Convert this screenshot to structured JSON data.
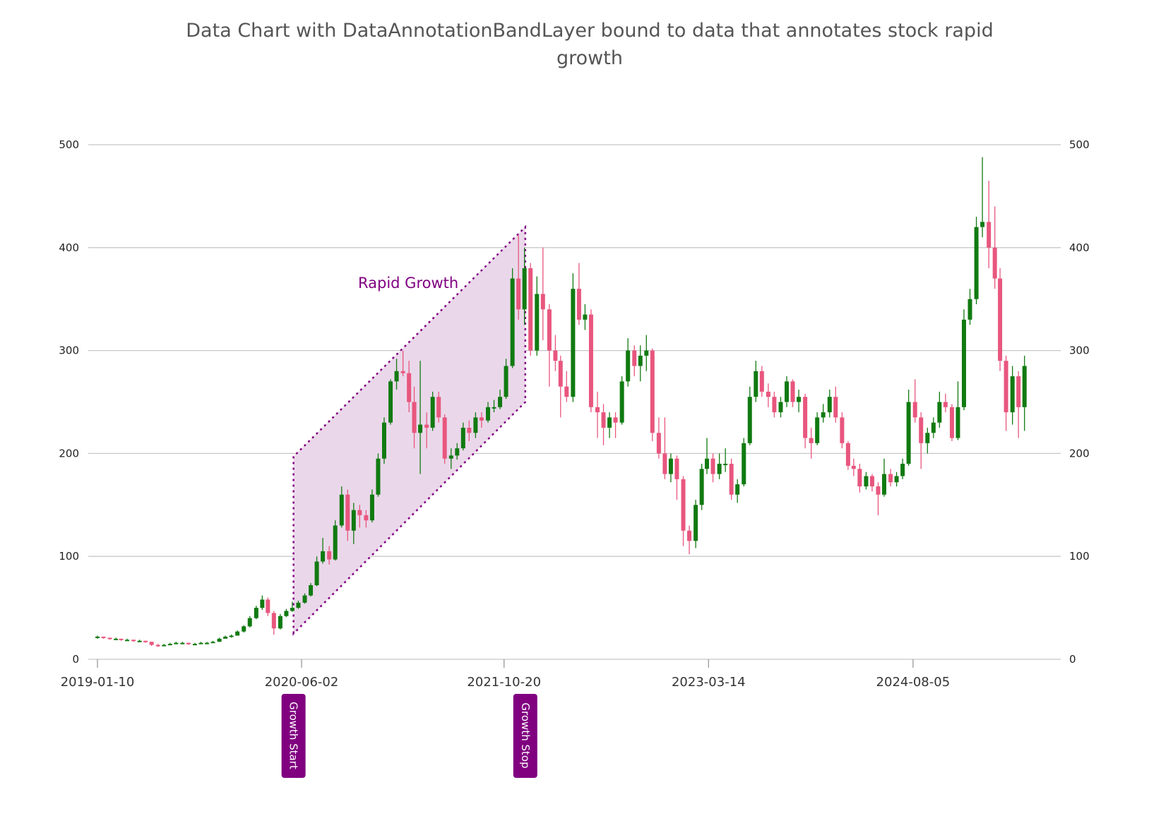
{
  "chart_data": {
    "type": "candlestick",
    "title": "Data Chart with DataAnnotationBandLayer bound to data that annotates stock rapid growth",
    "ylim": [
      0,
      500
    ],
    "yticks": [
      0,
      100,
      200,
      300,
      400,
      500
    ],
    "xticks": [
      "2019-01-10",
      "2020-06-02",
      "2021-10-20",
      "2023-03-14",
      "2024-08-05"
    ],
    "grid": "horizontal",
    "y_axis_both_sides": true,
    "colors": {
      "up": "#117a11",
      "down": "#e8567e",
      "band_fill": "#ead8ea",
      "band_stroke": "#800080",
      "annotation": "#800080",
      "grid": "#c8c8c8",
      "title": "#555555"
    },
    "candles_columns": [
      "date",
      "open",
      "high",
      "low",
      "close"
    ],
    "candles": [
      [
        "2019-01-10",
        21,
        23,
        20,
        22
      ],
      [
        "2019-01-25",
        22,
        22,
        20,
        21
      ],
      [
        "2019-02-10",
        21,
        21,
        19,
        20
      ],
      [
        "2019-02-25",
        20,
        21,
        19,
        20
      ],
      [
        "2019-03-10",
        20,
        20,
        18,
        19
      ],
      [
        "2019-03-25",
        19,
        20,
        18,
        19
      ],
      [
        "2019-04-10",
        19,
        19,
        17,
        18
      ],
      [
        "2019-04-25",
        18,
        19,
        17,
        18
      ],
      [
        "2019-05-10",
        18,
        18,
        16,
        17
      ],
      [
        "2019-05-25",
        17,
        17,
        13,
        14
      ],
      [
        "2019-06-10",
        14,
        15,
        12,
        13
      ],
      [
        "2019-06-25",
        13,
        15,
        13,
        14
      ],
      [
        "2019-07-10",
        14,
        16,
        14,
        15
      ],
      [
        "2019-07-25",
        15,
        17,
        15,
        16
      ],
      [
        "2019-08-10",
        16,
        17,
        15,
        16
      ],
      [
        "2019-08-25",
        16,
        16,
        14,
        15
      ],
      [
        "2019-09-10",
        15,
        16,
        14,
        15
      ],
      [
        "2019-09-25",
        15,
        17,
        15,
        16
      ],
      [
        "2019-10-10",
        16,
        17,
        15,
        16
      ],
      [
        "2019-10-25",
        16,
        18,
        16,
        17
      ],
      [
        "2019-11-10",
        17,
        21,
        17,
        20
      ],
      [
        "2019-11-25",
        20,
        23,
        20,
        22
      ],
      [
        "2019-12-10",
        22,
        24,
        21,
        23
      ],
      [
        "2019-12-25",
        23,
        28,
        23,
        27
      ],
      [
        "2020-01-10",
        27,
        33,
        26,
        32
      ],
      [
        "2020-01-25",
        32,
        42,
        31,
        40
      ],
      [
        "2020-02-10",
        40,
        52,
        39,
        50
      ],
      [
        "2020-02-25",
        50,
        62,
        48,
        58
      ],
      [
        "2020-03-10",
        58,
        60,
        42,
        45
      ],
      [
        "2020-03-25",
        45,
        47,
        24,
        30
      ],
      [
        "2020-04-10",
        30,
        44,
        29,
        42
      ],
      [
        "2020-04-25",
        42,
        49,
        41,
        47
      ],
      [
        "2020-05-10",
        47,
        56,
        46,
        50
      ],
      [
        "2020-05-25",
        50,
        57,
        49,
        55
      ],
      [
        "2020-06-10",
        55,
        64,
        54,
        62
      ],
      [
        "2020-06-25",
        62,
        74,
        61,
        72
      ],
      [
        "2020-07-10",
        72,
        100,
        71,
        95
      ],
      [
        "2020-07-25",
        95,
        118,
        93,
        105
      ],
      [
        "2020-08-10",
        105,
        110,
        92,
        97
      ],
      [
        "2020-08-25",
        97,
        135,
        96,
        130
      ],
      [
        "2020-09-10",
        130,
        168,
        128,
        160
      ],
      [
        "2020-09-25",
        160,
        165,
        115,
        125
      ],
      [
        "2020-10-10",
        125,
        152,
        112,
        145
      ],
      [
        "2020-10-25",
        145,
        150,
        128,
        140
      ],
      [
        "2020-11-10",
        140,
        145,
        128,
        135
      ],
      [
        "2020-11-25",
        135,
        165,
        133,
        160
      ],
      [
        "2020-12-10",
        160,
        200,
        158,
        195
      ],
      [
        "2020-12-25",
        195,
        235,
        190,
        230
      ],
      [
        "2021-01-10",
        230,
        272,
        228,
        270
      ],
      [
        "2021-01-25",
        270,
        292,
        262,
        280
      ],
      [
        "2021-02-10",
        280,
        300,
        275,
        278
      ],
      [
        "2021-02-25",
        278,
        290,
        240,
        250
      ],
      [
        "2021-03-10",
        250,
        265,
        205,
        220
      ],
      [
        "2021-03-25",
        220,
        290,
        180,
        228
      ],
      [
        "2021-04-10",
        228,
        240,
        205,
        225
      ],
      [
        "2021-04-25",
        225,
        260,
        222,
        255
      ],
      [
        "2021-05-10",
        255,
        260,
        230,
        235
      ],
      [
        "2021-05-25",
        235,
        238,
        190,
        195
      ],
      [
        "2021-06-10",
        195,
        205,
        185,
        198
      ],
      [
        "2021-06-25",
        198,
        210,
        194,
        205
      ],
      [
        "2021-07-10",
        205,
        230,
        203,
        225
      ],
      [
        "2021-07-25",
        225,
        232,
        212,
        220
      ],
      [
        "2021-08-10",
        220,
        240,
        215,
        235
      ],
      [
        "2021-08-25",
        235,
        240,
        225,
        232
      ],
      [
        "2021-09-10",
        232,
        250,
        230,
        245
      ],
      [
        "2021-09-25",
        245,
        252,
        240,
        245
      ],
      [
        "2021-10-10",
        245,
        262,
        243,
        255
      ],
      [
        "2021-10-25",
        255,
        292,
        253,
        285
      ],
      [
        "2021-11-10",
        285,
        380,
        283,
        370
      ],
      [
        "2021-11-25",
        370,
        412,
        330,
        340
      ],
      [
        "2021-12-10",
        340,
        400,
        325,
        380
      ],
      [
        "2021-12-25",
        380,
        385,
        295,
        300
      ],
      [
        "2022-01-10",
        300,
        372,
        295,
        355
      ],
      [
        "2022-01-25",
        355,
        400,
        310,
        340
      ],
      [
        "2022-02-10",
        340,
        345,
        265,
        300
      ],
      [
        "2022-02-25",
        300,
        315,
        280,
        290
      ],
      [
        "2022-03-10",
        290,
        295,
        235,
        265
      ],
      [
        "2022-03-25",
        265,
        280,
        250,
        255
      ],
      [
        "2022-04-10",
        255,
        375,
        250,
        360
      ],
      [
        "2022-04-25",
        360,
        385,
        325,
        330
      ],
      [
        "2022-05-10",
        330,
        345,
        320,
        335
      ],
      [
        "2022-05-25",
        335,
        340,
        240,
        245
      ],
      [
        "2022-06-10",
        245,
        260,
        215,
        240
      ],
      [
        "2022-06-25",
        240,
        248,
        208,
        225
      ],
      [
        "2022-07-10",
        225,
        240,
        215,
        235
      ],
      [
        "2022-07-25",
        235,
        240,
        215,
        230
      ],
      [
        "2022-08-10",
        230,
        275,
        228,
        270
      ],
      [
        "2022-08-25",
        270,
        312,
        265,
        300
      ],
      [
        "2022-09-10",
        300,
        305,
        275,
        285
      ],
      [
        "2022-09-25",
        285,
        305,
        270,
        295
      ],
      [
        "2022-10-10",
        295,
        315,
        280,
        300
      ],
      [
        "2022-10-25",
        300,
        302,
        212,
        220
      ],
      [
        "2022-11-10",
        220,
        235,
        195,
        200
      ],
      [
        "2022-11-25",
        200,
        235,
        175,
        180
      ],
      [
        "2022-12-10",
        180,
        200,
        172,
        195
      ],
      [
        "2022-12-25",
        195,
        198,
        155,
        175
      ],
      [
        "2023-01-10",
        175,
        178,
        110,
        125
      ],
      [
        "2023-01-25",
        125,
        130,
        102,
        115
      ],
      [
        "2023-02-10",
        115,
        155,
        108,
        150
      ],
      [
        "2023-02-25",
        150,
        190,
        145,
        185
      ],
      [
        "2023-03-10",
        185,
        215,
        180,
        195
      ],
      [
        "2023-03-25",
        195,
        200,
        172,
        180
      ],
      [
        "2023-04-10",
        180,
        200,
        175,
        190
      ],
      [
        "2023-04-25",
        190,
        205,
        182,
        190
      ],
      [
        "2023-05-10",
        190,
        195,
        155,
        160
      ],
      [
        "2023-05-25",
        160,
        175,
        152,
        170
      ],
      [
        "2023-06-10",
        170,
        215,
        168,
        210
      ],
      [
        "2023-06-25",
        210,
        265,
        208,
        255
      ],
      [
        "2023-07-10",
        255,
        290,
        250,
        280
      ],
      [
        "2023-07-25",
        280,
        285,
        255,
        260
      ],
      [
        "2023-08-10",
        260,
        268,
        245,
        255
      ],
      [
        "2023-08-25",
        255,
        260,
        235,
        240
      ],
      [
        "2023-09-10",
        240,
        255,
        235,
        250
      ],
      [
        "2023-09-25",
        250,
        275,
        245,
        270
      ],
      [
        "2023-10-10",
        270,
        272,
        245,
        250
      ],
      [
        "2023-10-25",
        250,
        262,
        240,
        255
      ],
      [
        "2023-11-10",
        255,
        258,
        205,
        215
      ],
      [
        "2023-11-25",
        215,
        225,
        195,
        210
      ],
      [
        "2023-12-10",
        210,
        240,
        208,
        235
      ],
      [
        "2023-12-25",
        235,
        248,
        230,
        240
      ],
      [
        "2024-01-10",
        240,
        262,
        235,
        255
      ],
      [
        "2024-01-25",
        255,
        265,
        230,
        235
      ],
      [
        "2024-02-10",
        235,
        240,
        205,
        210
      ],
      [
        "2024-02-25",
        210,
        212,
        184,
        188
      ],
      [
        "2024-03-10",
        188,
        195,
        178,
        185
      ],
      [
        "2024-03-25",
        185,
        190,
        162,
        168
      ],
      [
        "2024-04-10",
        168,
        182,
        165,
        178
      ],
      [
        "2024-04-25",
        178,
        180,
        163,
        168
      ],
      [
        "2024-05-10",
        168,
        172,
        140,
        160
      ],
      [
        "2024-05-25",
        160,
        195,
        158,
        180
      ],
      [
        "2024-06-10",
        180,
        185,
        168,
        172
      ],
      [
        "2024-06-25",
        172,
        182,
        168,
        178
      ],
      [
        "2024-07-10",
        178,
        195,
        175,
        190
      ],
      [
        "2024-07-25",
        190,
        262,
        188,
        250
      ],
      [
        "2024-08-10",
        250,
        272,
        230,
        235
      ],
      [
        "2024-08-25",
        235,
        240,
        185,
        210
      ],
      [
        "2024-09-10",
        210,
        225,
        200,
        220
      ],
      [
        "2024-09-25",
        220,
        235,
        215,
        230
      ],
      [
        "2024-10-10",
        230,
        260,
        225,
        250
      ],
      [
        "2024-10-25",
        250,
        258,
        240,
        245
      ],
      [
        "2024-11-10",
        245,
        248,
        212,
        215
      ],
      [
        "2024-11-25",
        215,
        270,
        213,
        245
      ],
      [
        "2024-12-10",
        245,
        340,
        242,
        330
      ],
      [
        "2024-12-25",
        330,
        360,
        325,
        350
      ],
      [
        "2025-01-10",
        350,
        430,
        345,
        420
      ],
      [
        "2025-01-25",
        420,
        488,
        410,
        425
      ],
      [
        "2025-02-10",
        425,
        465,
        380,
        400
      ],
      [
        "2025-02-25",
        400,
        440,
        360,
        370
      ],
      [
        "2025-03-10",
        370,
        380,
        280,
        290
      ],
      [
        "2025-03-25",
        290,
        295,
        222,
        240
      ],
      [
        "2025-04-10",
        240,
        285,
        228,
        275
      ],
      [
        "2025-04-25",
        275,
        280,
        215,
        245
      ],
      [
        "2025-05-10",
        245,
        295,
        222,
        285
      ]
    ],
    "band": {
      "label": "Rapid Growth",
      "start": {
        "date": "2020-05-13",
        "low": 25,
        "high": 197,
        "label": "Growth Start"
      },
      "end": {
        "date": "2021-12-12",
        "low": 250,
        "high": 420,
        "label": "Growth Stop"
      }
    }
  }
}
